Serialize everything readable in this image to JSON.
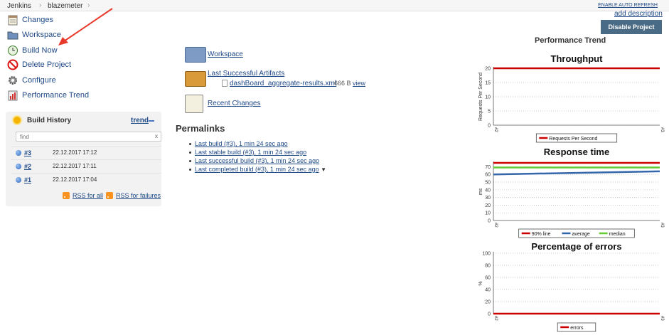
{
  "breadcrumb": {
    "items": [
      "Jenkins",
      "blazemeter"
    ],
    "auto_refresh": "ENABLE AUTO REFRESH"
  },
  "sidebar": {
    "tasks": [
      {
        "label": "Changes",
        "icon": "notepad-icon"
      },
      {
        "label": "Workspace",
        "icon": "folder-icon"
      },
      {
        "label": "Build Now",
        "icon": "clock-icon"
      },
      {
        "label": "Delete Project",
        "icon": "no-entry-icon"
      },
      {
        "label": "Configure",
        "icon": "gear-icon"
      },
      {
        "label": "Performance Trend",
        "icon": "bar-chart-icon"
      }
    ]
  },
  "build_history": {
    "title": "Build History",
    "trend_label": "trend",
    "find_placeholder": "find",
    "clear_label": "x",
    "builds": [
      {
        "number": "#3",
        "date": "22.12.2017 17:12"
      },
      {
        "number": "#2",
        "date": "22.12.2017 17:11"
      },
      {
        "number": "#1",
        "date": "22.12.2017 17:04"
      }
    ],
    "rss_all": "RSS for all",
    "rss_failures": "RSS for failures"
  },
  "main": {
    "workspace_label": "Workspace",
    "artifacts_label": "Last Successful Artifacts",
    "artifact_file": "dashBoard_aggregate-results.xml",
    "artifact_size": "666 B",
    "artifact_view": "view",
    "recent_changes": "Recent Changes",
    "permalinks_title": "Permalinks",
    "permalinks": [
      "Last build (#3), 1 min 24 sec ago",
      "Last stable build (#3), 1 min 24 sec ago",
      "Last successful build (#3), 1 min 24 sec ago",
      "Last completed build (#3), 1 min 24 sec ago"
    ]
  },
  "side_panel": {
    "add_description": "add description",
    "disable_button": "Disable Project",
    "performance_trend_title": "Performance Trend"
  },
  "chart_data": [
    {
      "type": "line",
      "title": "Throughput",
      "xlabel": "",
      "ylabel": "Requests Per Second",
      "categories": [
        "#2",
        "#3"
      ],
      "ylim": [
        0,
        20
      ],
      "yticks": [
        0,
        5,
        10,
        15,
        20
      ],
      "series": [
        {
          "name": "Requests Per Second",
          "values": [
            20,
            20
          ],
          "color": "#cc0000"
        }
      ],
      "grid": true,
      "legend": "bottom"
    },
    {
      "type": "line",
      "title": "Response time",
      "xlabel": "",
      "ylabel": "ms",
      "categories": [
        "#2",
        "#3"
      ],
      "ylim": [
        0,
        75
      ],
      "yticks": [
        0,
        10,
        20,
        30,
        40,
        50,
        60,
        70
      ],
      "series": [
        {
          "name": "90% line",
          "values": [
            75,
            75
          ],
          "color": "#cc0000"
        },
        {
          "name": "average",
          "values": [
            60,
            64
          ],
          "color": "#3366aa"
        },
        {
          "name": "median",
          "values": [
            69,
            69
          ],
          "color": "#66cc33"
        }
      ],
      "grid": true,
      "legend": "bottom"
    },
    {
      "type": "line",
      "title": "Percentage of errors",
      "xlabel": "",
      "ylabel": "%",
      "categories": [
        "#2",
        "#3"
      ],
      "ylim": [
        0,
        100
      ],
      "yticks": [
        0,
        20,
        40,
        60,
        80,
        100
      ],
      "series": [
        {
          "name": "errors",
          "values": [
            0,
            0
          ],
          "color": "#cc0000"
        }
      ],
      "grid": true,
      "legend": "bottom"
    }
  ],
  "colors": {
    "link": "#204a87",
    "button": "#4a6b86",
    "series_red": "#cc0000",
    "series_blue": "#3366aa",
    "series_green": "#66cc33"
  }
}
